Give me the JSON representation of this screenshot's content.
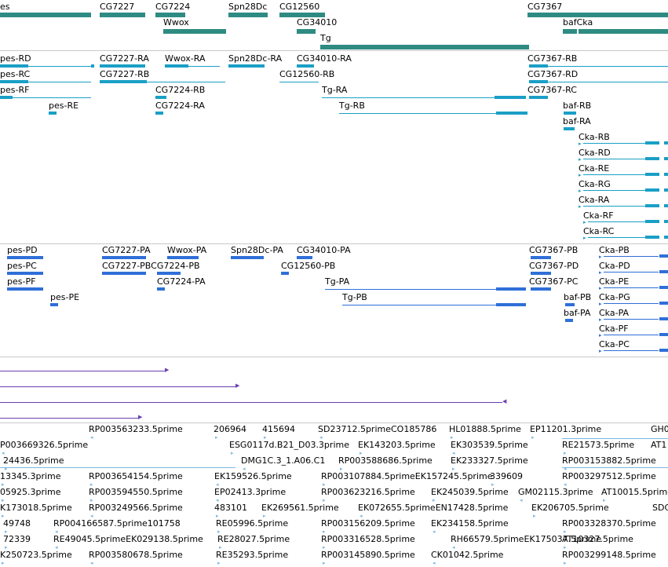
{
  "colors": {
    "gene": "#2e8b82",
    "transcript": "#1a9fc6",
    "protein": "#2f6fd8",
    "purple": "#6a3fb0",
    "est": "#7ab8e0",
    "separator": "#c8c8c8"
  },
  "genes": {
    "labels": [
      "es",
      "CG7227",
      "CG7224",
      "Spn28Dc",
      "CG12560",
      "CG7367",
      "Wwox",
      "CG34010",
      "bafCka",
      "Tg"
    ]
  },
  "transcripts": {
    "labels": [
      "pes-RD",
      "CG7227-RA",
      "Wwox-RA",
      "Spn28Dc-RA",
      "CG34010-RA",
      "CG7367-RB",
      "pes-RC",
      "CG7227-RB",
      "CG12560-RB",
      "CG7367-RD",
      "pes-RF",
      "CG7224-RB",
      "Tg-RA",
      "CG7367-RC",
      "pes-RE",
      "CG7224-RA",
      "Tg-RB",
      "baf-RB",
      "baf-RA",
      "Cka-RB",
      "Cka-RD",
      "Cka-RE",
      "Cka-RG",
      "Cka-RA",
      "Cka-RF",
      "Cka-RC"
    ]
  },
  "proteins": {
    "labels": [
      "pes-PD",
      "CG7227-PA",
      "Wwox-PA",
      "Spn28Dc-PA",
      "CG34010-PA",
      "CG7367-PB",
      "Cka-PB",
      "pes-PC",
      "CG7227-PBCG7224-PB",
      "CG12560-PB",
      "CG7367-PD",
      "Cka-PD",
      "pes-PF",
      "CG7224-PA",
      "Tg-PA",
      "CG7367-PC",
      "Cka-PE",
      "pes-PE",
      "Tg-PB",
      "baf-PB",
      "Cka-PG",
      "baf-PA",
      "Cka-PA",
      "Cka-PF",
      "Cka-PC"
    ]
  },
  "ests": {
    "labels": [
      "RP003563233.5prime",
      "206964",
      "415694",
      "SD23712.5primeCO185786",
      "HL01888.5prime",
      "EP11201.3prime",
      "GH0",
      "P003669326.5prime",
      "ESG0117d.B21_D03.3prime",
      "EK143203.5prime",
      "EK303539.5prime",
      "RE21573.5prime",
      "AT1",
      "24436.5prime",
      "DMG1C.3_1.A06.C1",
      "RP003588686.5prime",
      "EK233327.5prime",
      "RP003153882.5prime",
      "13345.3prime",
      "RP003654154.5prime",
      "EK159526.5prime",
      "RP003107884.5primeEK157245.5prime",
      "339609",
      "RP003297512.5prime",
      "05925.3prime",
      "RP003594550.5prime",
      "EP02413.3prime",
      "RP003623216.5prime",
      "EK245039.5prime",
      "GM02115.3prime",
      "AT10015.5prime",
      "K173018.5prime",
      "RP003249566.5prime",
      "483101",
      "EK269561.5prime",
      "EK072655.5primeEN17428.5prime",
      "EK206705.5prime",
      "SDC",
      "49748",
      "RP004166587.5prime101758",
      "RE05996.5prime",
      "RP003156209.5prime",
      "EK234158.5prime",
      "RP003328370.5prime",
      "72339",
      "RE49045.5primeEK029138.5prime",
      "RE28027.5prime",
      "RP003316528.5prime",
      "RH66579.5primeEK175037.5prime",
      "AT10327.5prime",
      "K250723.5prime",
      "RP003580678.5prime",
      "RE35293.5prime",
      "RP003145890.5prime",
      "CK01042.5prime",
      "RP003299148.5prime"
    ]
  }
}
